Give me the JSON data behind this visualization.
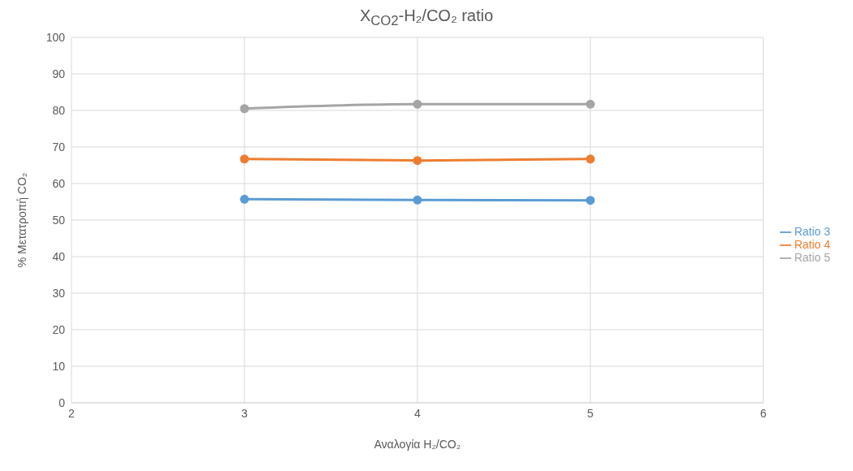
{
  "chart_data": {
    "type": "line",
    "title": "X$_{CO2}$-H₂/CO₂ ratio",
    "xlabel": "Αναλογία H₂/CO₂",
    "ylabel": "% Μετατροπή CO₂",
    "x": [
      3,
      4,
      5
    ],
    "series": [
      {
        "name": "Ratio 3",
        "color": "#5b9bd5",
        "values": [
          55.7,
          55.5,
          55.4
        ]
      },
      {
        "name": "Ratio 4",
        "color": "#ed7d31",
        "values": [
          66.7,
          66.3,
          66.7
        ]
      },
      {
        "name": "Ratio 5",
        "color": "#a5a5a5",
        "values": [
          80.5,
          81.7,
          81.7
        ]
      }
    ],
    "xlim": [
      2,
      6
    ],
    "xticks": [
      2,
      3,
      4,
      5,
      6
    ],
    "ylim": [
      0,
      100
    ],
    "yticks": [
      0,
      10,
      20,
      30,
      40,
      50,
      60,
      70,
      80,
      90,
      100
    ],
    "grid": true,
    "legend": "right",
    "marker": "circle",
    "line_style": "solid"
  }
}
